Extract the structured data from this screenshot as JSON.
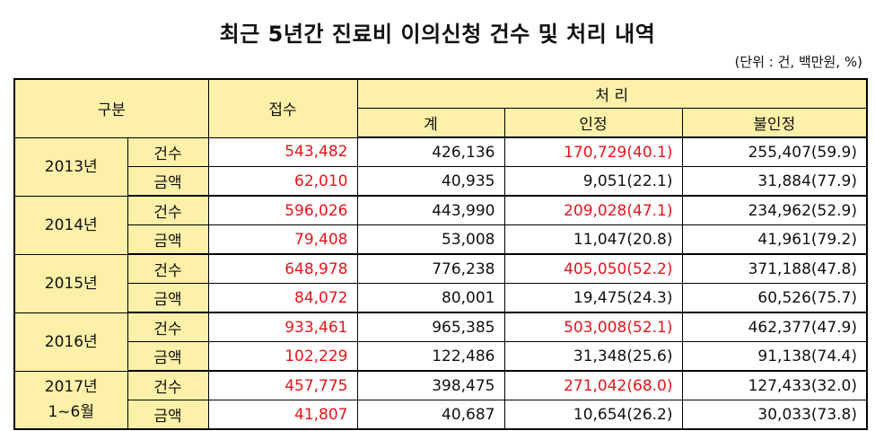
{
  "title": "최근 5년간 진료비 이의신청 건수 및 처리 내역",
  "unit_note": "(단위 : 건, 백만원, %)",
  "header": {
    "category": "구분",
    "received": "접수",
    "processing": "처 리",
    "total": "계",
    "accepted": "인정",
    "rejected": "불인정"
  },
  "rows": [
    {
      "year": "2013년",
      "year_sub": "",
      "count": {
        "label": "건수",
        "received": "543,482",
        "total": "426,136",
        "accepted": "170,729(40.1)",
        "rejected": "255,407(59.9)"
      },
      "amount": {
        "label": "금액",
        "received": "62,010",
        "total": "40,935",
        "accepted": "9,051(22.1)",
        "rejected": "31,884(77.9)"
      }
    },
    {
      "year": "2014년",
      "year_sub": "",
      "count": {
        "label": "건수",
        "received": "596,026",
        "total": "443,990",
        "accepted": "209,028(47.1)",
        "rejected": "234,962(52.9)"
      },
      "amount": {
        "label": "금액",
        "received": "79,408",
        "total": "53,008",
        "accepted": "11,047(20.8)",
        "rejected": "41,961(79.2)"
      }
    },
    {
      "year": "2015년",
      "year_sub": "",
      "count": {
        "label": "건수",
        "received": "648,978",
        "total": "776,238",
        "accepted": "405,050(52.2)",
        "rejected": "371,188(47.8)"
      },
      "amount": {
        "label": "금액",
        "received": "84,072",
        "total": "80,001",
        "accepted": "19,475(24.3)",
        "rejected": "60,526(75.7)"
      }
    },
    {
      "year": "2016년",
      "year_sub": "",
      "count": {
        "label": "건수",
        "received": "933,461",
        "total": "965,385",
        "accepted": "503,008(52.1)",
        "rejected": "462,377(47.9)"
      },
      "amount": {
        "label": "금액",
        "received": "102,229",
        "total": "122,486",
        "accepted": "31,348(25.6)",
        "rejected": "91,138(74.4)"
      }
    },
    {
      "year": "2017년",
      "year_sub": "1~6월",
      "count": {
        "label": "건수",
        "received": "457,775",
        "total": "398,475",
        "accepted": "271,042(68.0)",
        "rejected": "127,433(32.0)"
      },
      "amount": {
        "label": "금액",
        "received": "41,807",
        "total": "40,687",
        "accepted": "10,654(26.2)",
        "rejected": "30,033(73.8)"
      }
    }
  ],
  "colors": {
    "header_bg": "#fdf0a8",
    "highlight_text": "#e8141b"
  }
}
